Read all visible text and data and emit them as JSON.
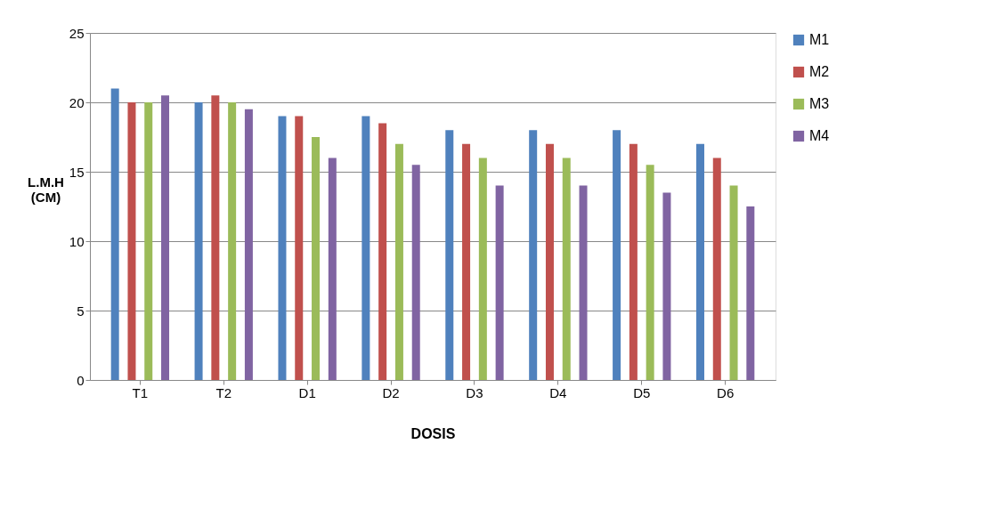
{
  "chart_data": {
    "type": "bar",
    "xlabel": "DOSIS",
    "ylabel": "L.M.H (CM)",
    "categories": [
      "T1",
      "T2",
      "D1",
      "D2",
      "D3",
      "D4",
      "D5",
      "D6"
    ],
    "series": [
      {
        "name": "M1",
        "color": "#4f81bd",
        "values": [
          21,
          20,
          19,
          19,
          18,
          18,
          18,
          17
        ]
      },
      {
        "name": "M2",
        "color": "#c0504d",
        "values": [
          20,
          20.5,
          19,
          18.5,
          17,
          17,
          17,
          16
        ]
      },
      {
        "name": "M3",
        "color": "#9bbb59",
        "values": [
          20,
          20,
          17.5,
          17,
          16,
          16,
          15.5,
          14
        ]
      },
      {
        "name": "M4",
        "color": "#8064a2",
        "values": [
          20.5,
          19.5,
          16,
          15.5,
          14,
          14,
          13.5,
          12.5
        ]
      }
    ],
    "ylim": [
      0,
      25
    ],
    "yticks": [
      0,
      5,
      10,
      15,
      20,
      25
    ],
    "grid": "y",
    "legend": "right"
  }
}
